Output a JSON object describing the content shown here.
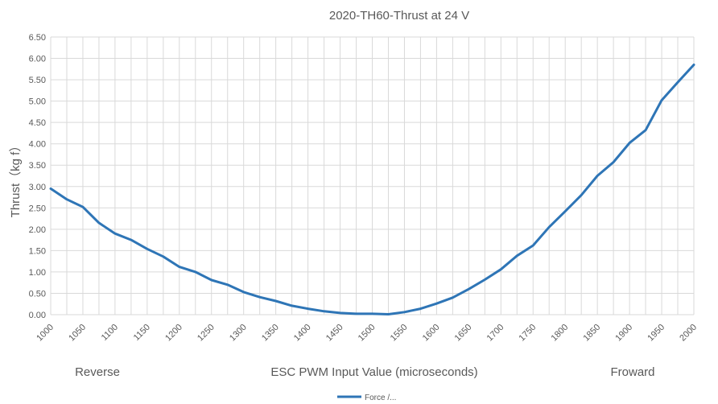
{
  "chart_data": {
    "type": "line",
    "title": "2020-TH60-Thrust at 24 V",
    "xlabel": "ESC PWM Input Value (microseconds)",
    "ylabel": "Thrust（kg f）",
    "x_annotations": {
      "left": "Reverse",
      "right": "Froward"
    },
    "xlim": [
      1000,
      2000
    ],
    "ylim": [
      0,
      6.5
    ],
    "x_ticks": [
      1000,
      1050,
      1100,
      1150,
      1200,
      1250,
      1300,
      1350,
      1400,
      1450,
      1500,
      1550,
      1600,
      1650,
      1700,
      1750,
      1800,
      1850,
      1900,
      1950,
      2000
    ],
    "y_ticks": [
      "0.00",
      "0.50",
      "1.00",
      "1.50",
      "2.00",
      "2.50",
      "3.00",
      "3.50",
      "4.00",
      "4.50",
      "5.00",
      "5.50",
      "6.00",
      "6.50"
    ],
    "grid": true,
    "legend_position": "bottom",
    "series": [
      {
        "name": "Force /...",
        "color": "#2e75b6",
        "x": [
          1000,
          1025,
          1050,
          1075,
          1100,
          1125,
          1150,
          1175,
          1200,
          1225,
          1250,
          1275,
          1300,
          1325,
          1350,
          1375,
          1400,
          1425,
          1450,
          1475,
          1500,
          1525,
          1550,
          1575,
          1600,
          1625,
          1650,
          1675,
          1700,
          1725,
          1750,
          1775,
          1800,
          1825,
          1850,
          1875,
          1900,
          1925,
          1950,
          1975,
          2000
        ],
        "y": [
          2.95,
          2.7,
          2.52,
          2.15,
          1.9,
          1.75,
          1.54,
          1.36,
          1.12,
          1.0,
          0.81,
          0.7,
          0.53,
          0.41,
          0.32,
          0.21,
          0.14,
          0.08,
          0.04,
          0.02,
          0.02,
          0.01,
          0.06,
          0.14,
          0.26,
          0.4,
          0.6,
          0.82,
          1.06,
          1.38,
          1.62,
          2.05,
          2.42,
          2.8,
          3.25,
          3.57,
          4.02,
          4.32,
          5.02,
          5.44,
          5.85
        ]
      }
    ]
  }
}
